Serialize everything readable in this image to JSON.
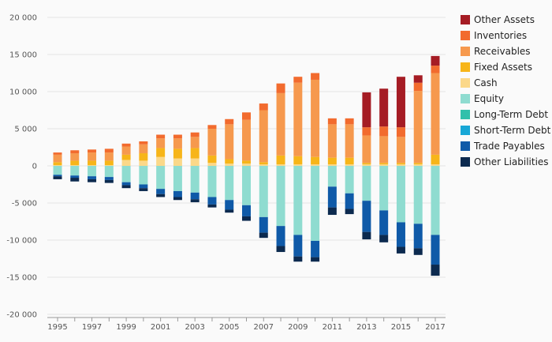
{
  "chart_data": {
    "type": "bar",
    "stacked": true,
    "x": [
      1995,
      1996,
      1997,
      1998,
      1999,
      2000,
      2001,
      2002,
      2003,
      2004,
      2005,
      2006,
      2007,
      2008,
      2009,
      2010,
      2011,
      2012,
      2013,
      2014,
      2015,
      2016,
      2017
    ],
    "x_tick_labels": [
      "1995",
      "1997",
      "1999",
      "2001",
      "2003",
      "2005",
      "2007",
      "2009",
      "2011",
      "2013",
      "2015",
      "2017"
    ],
    "ylim": [
      -20000,
      20000
    ],
    "y_ticks": [
      20000,
      15000,
      10000,
      5000,
      0,
      -5000,
      -10000,
      -15000,
      -20000
    ],
    "y_tick_labels": [
      "20 000",
      "15 000",
      "10 000",
      "5 000",
      "0",
      "-5 000",
      "-10 000",
      "-15 000",
      "-20 000"
    ],
    "grid": "horizontal",
    "legend_position": "right",
    "series": [
      {
        "name": "Other Assets",
        "color": "#a51c24",
        "side": "positive",
        "values": [
          0,
          0,
          0,
          0,
          0,
          0,
          0,
          0,
          0,
          0,
          0,
          0,
          0,
          0,
          0,
          0,
          0,
          0,
          4700,
          5100,
          6800,
          1000,
          1300
        ]
      },
      {
        "name": "Inventories",
        "color": "#f26b2e",
        "side": "positive",
        "values": [
          300,
          400,
          400,
          500,
          400,
          400,
          500,
          500,
          600,
          500,
          700,
          1000,
          900,
          1300,
          800,
          900,
          800,
          800,
          1100,
          1300,
          1300,
          1100,
          1000
        ]
      },
      {
        "name": "Receivables",
        "color": "#f6994e",
        "side": "positive",
        "values": [
          1000,
          1000,
          1100,
          1100,
          1100,
          1200,
          1300,
          1400,
          1500,
          3600,
          4700,
          5500,
          7000,
          8400,
          9900,
          10400,
          4500,
          4500,
          3700,
          3600,
          3500,
          9700,
          11000
        ]
      },
      {
        "name": "Fixed Assets",
        "color": "#f7b519",
        "side": "positive",
        "values": [
          400,
          600,
          600,
          600,
          700,
          1000,
          1200,
          1300,
          1400,
          1000,
          600,
          400,
          300,
          1200,
          1100,
          1000,
          900,
          900,
          200,
          200,
          200,
          200,
          1300
        ]
      },
      {
        "name": "Cash",
        "color": "#fbd889",
        "side": "positive",
        "values": [
          100,
          100,
          100,
          100,
          800,
          700,
          1200,
          1000,
          1000,
          400,
          300,
          300,
          200,
          200,
          200,
          200,
          200,
          200,
          200,
          200,
          200,
          200,
          200
        ]
      },
      {
        "name": "Equity",
        "color": "#8fdcd0",
        "side": "negative",
        "values": [
          -1200,
          -1300,
          -1400,
          -1500,
          -2200,
          -2500,
          -3100,
          -3400,
          -3600,
          -4200,
          -4600,
          -5300,
          -6900,
          -8100,
          -9300,
          -10100,
          -2800,
          -3700,
          -4700,
          -6000,
          -7600,
          -7800,
          -9300
        ]
      },
      {
        "name": "Long-Term Debt",
        "color": "#31c0ab",
        "side": "negative",
        "values": [
          0,
          0,
          0,
          0,
          0,
          0,
          0,
          0,
          0,
          0,
          0,
          0,
          0,
          0,
          0,
          0,
          0,
          0,
          0,
          0,
          0,
          0,
          0
        ]
      },
      {
        "name": "Short-Term Debt",
        "color": "#18a7d6",
        "side": "negative",
        "values": [
          0,
          0,
          0,
          0,
          0,
          0,
          0,
          0,
          0,
          0,
          0,
          0,
          0,
          0,
          0,
          0,
          0,
          0,
          0,
          0,
          0,
          0,
          0
        ]
      },
      {
        "name": "Trade Payables",
        "color": "#0f5aa8",
        "side": "negative",
        "values": [
          -200,
          -300,
          -400,
          -400,
          -400,
          -500,
          -700,
          -800,
          -900,
          -1000,
          -1300,
          -1500,
          -2100,
          -2700,
          -2900,
          -2200,
          -2800,
          -2100,
          -4200,
          -3300,
          -3300,
          -3300,
          -4000
        ]
      },
      {
        "name": "Other Liabilities",
        "color": "#0c2a4f",
        "side": "negative",
        "values": [
          -400,
          -500,
          -400,
          -400,
          -400,
          -400,
          -400,
          -400,
          -400,
          -400,
          -400,
          -600,
          -700,
          -800,
          -700,
          -600,
          -1000,
          -700,
          -1000,
          -1000,
          -900,
          -900,
          -1500
        ]
      }
    ]
  }
}
